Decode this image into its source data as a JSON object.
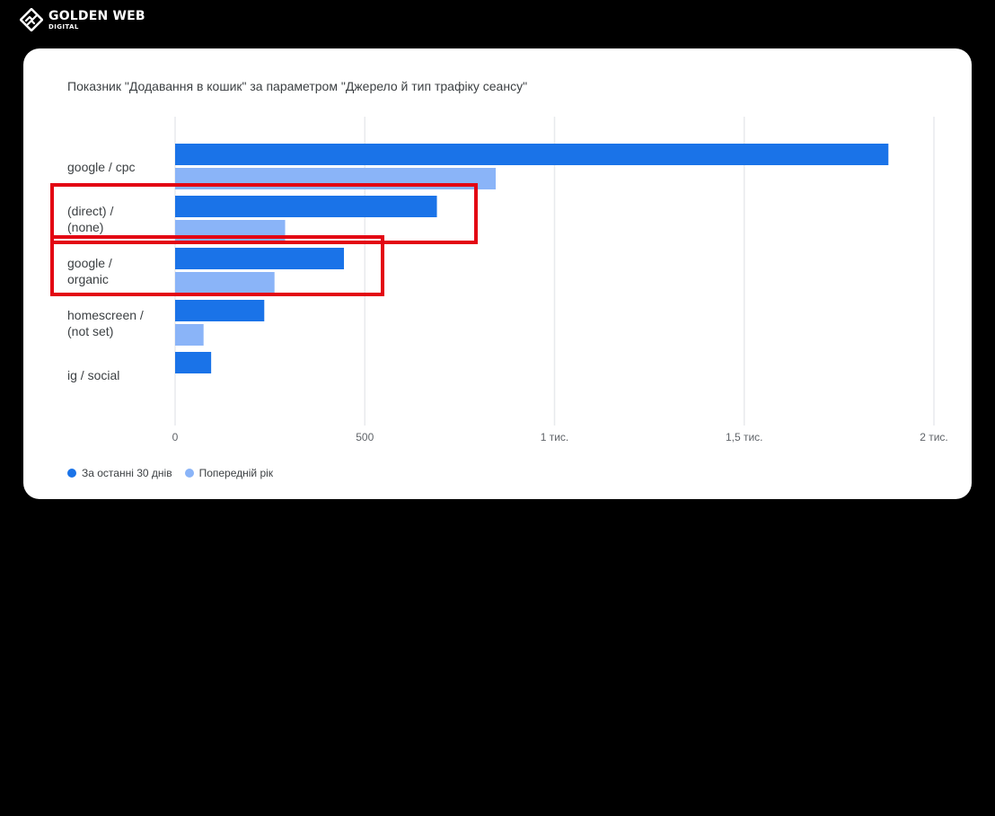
{
  "brand": {
    "name": "GOLDEN WEB",
    "sub": "DIGITAL",
    "icon": "golden-web-logo-icon"
  },
  "chart_data": {
    "type": "bar",
    "orientation": "horizontal",
    "title": "Показник \"Додавання в кошик\" за параметром \"Джерело й тип трафіку сеансу\"",
    "categories": [
      [
        "google / cpc"
      ],
      [
        "(direct) /",
        "(none)"
      ],
      [
        "google /",
        "organic"
      ],
      [
        "homescreen /",
        "(not set)"
      ],
      [
        "ig / social"
      ]
    ],
    "series": [
      {
        "name": "За останні 30 днів",
        "color": "#1a73e8",
        "values": [
          1880,
          690,
          445,
          235,
          95
        ]
      },
      {
        "name": "Попередній рік",
        "color": "#8ab4f8",
        "values": [
          845,
          290,
          262,
          75,
          null
        ]
      }
    ],
    "xlim": [
      0,
      2000
    ],
    "ticks": [
      {
        "value": 0,
        "label": "0"
      },
      {
        "value": 500,
        "label": "500"
      },
      {
        "value": 1000,
        "label": "1 тис."
      },
      {
        "value": 1500,
        "label": "1,5 тис."
      },
      {
        "value": 2000,
        "label": "2 тис."
      }
    ],
    "grid": true,
    "legend_position": "bottom-left",
    "highlighted_categories": [
      1,
      2
    ],
    "highlight_color": "#e30613"
  }
}
